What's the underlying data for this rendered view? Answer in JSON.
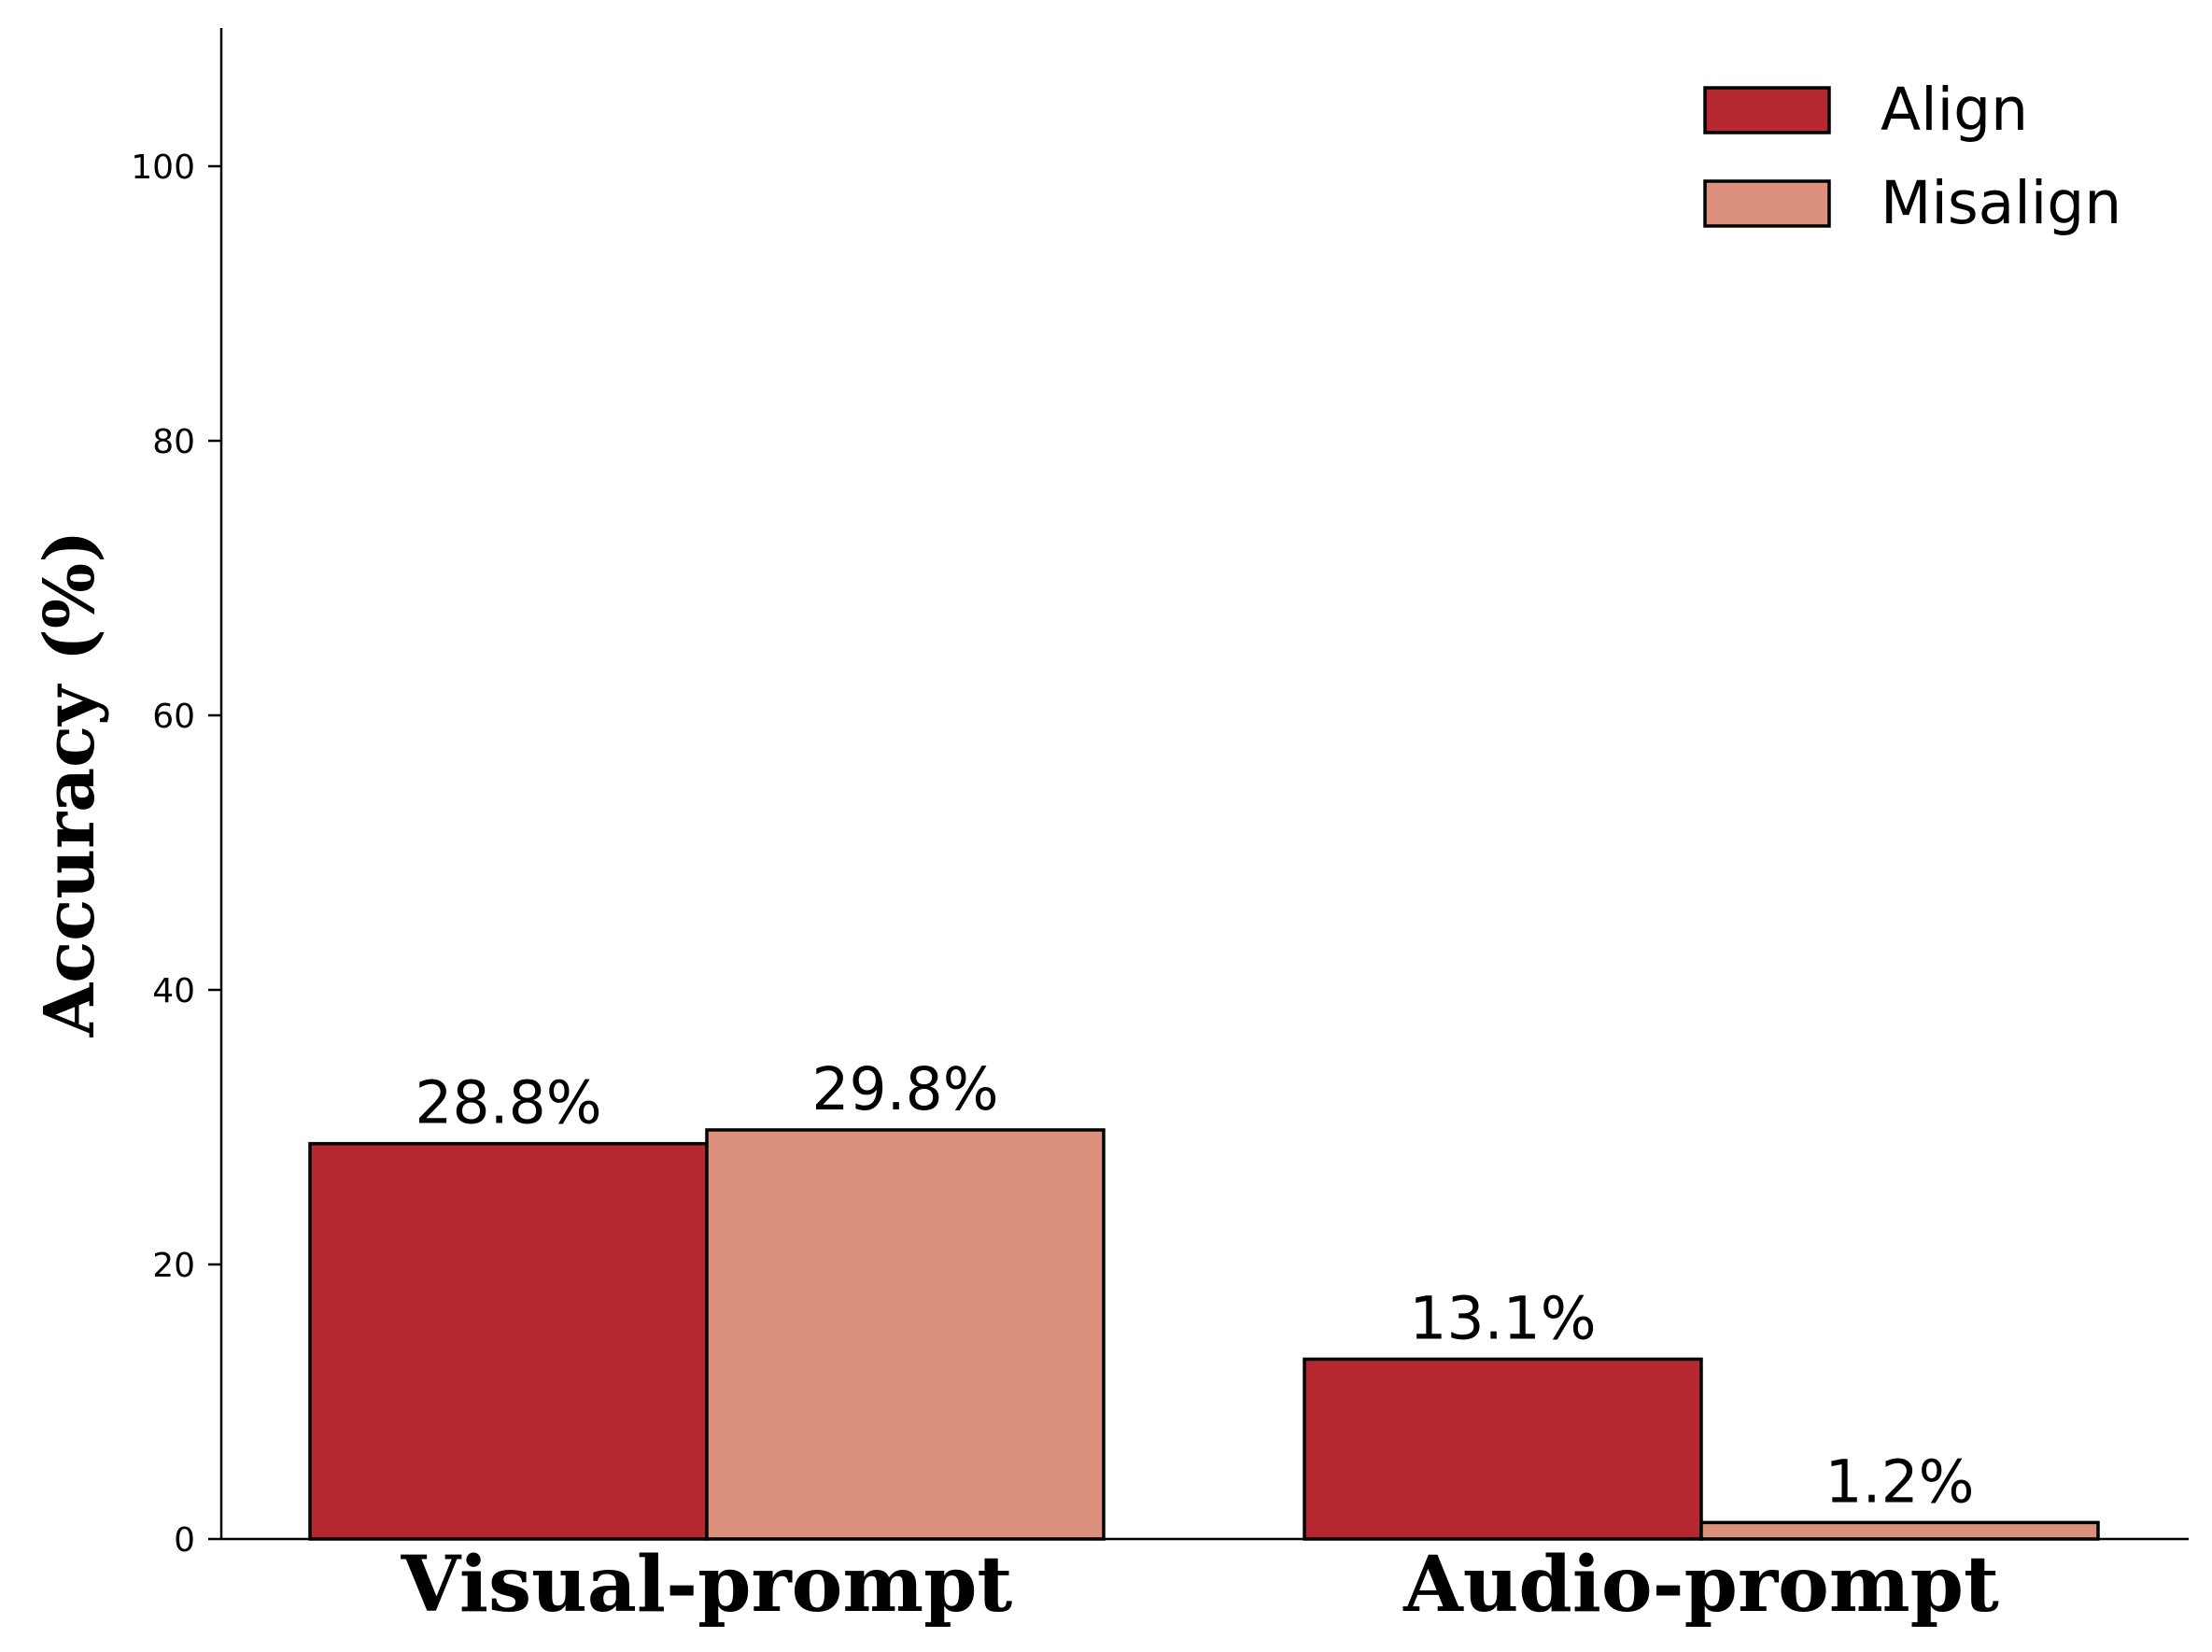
{
  "chart_data": {
    "type": "bar",
    "categories": [
      "Visual-prompt",
      "Audio-prompt"
    ],
    "series": [
      {
        "name": "Align",
        "values": [
          28.8,
          13.1
        ],
        "labels": [
          "28.8%",
          "13.1%"
        ],
        "color": "#b5282f"
      },
      {
        "name": "Misalign",
        "values": [
          29.8,
          1.2
        ],
        "labels": [
          "29.8%",
          "1.2%"
        ],
        "color": "#db917b"
      }
    ],
    "ylabel": "Accuracy (%)",
    "ylim": [
      0,
      110
    ],
    "yticks": [
      "0",
      "20",
      "40",
      "60",
      "80",
      "100"
    ],
    "grid": false,
    "legend_position": "top-right"
  }
}
